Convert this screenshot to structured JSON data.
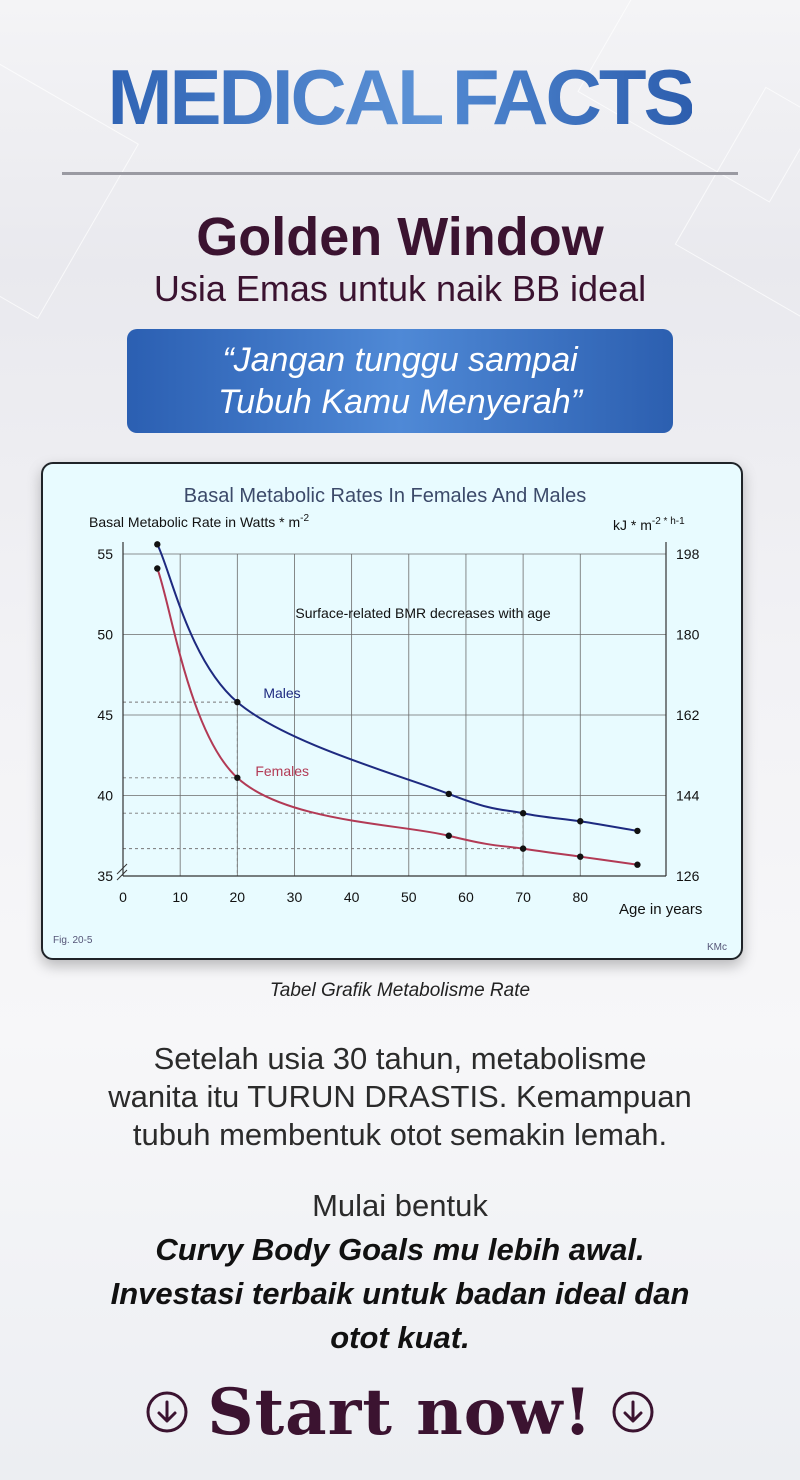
{
  "headline": {
    "word1": "MEDICAL",
    "word2": "FACTS"
  },
  "title": "Golden Window",
  "subtitle": "Usia Emas untuk naik BB ideal",
  "quote": {
    "line1": "“Jangan tunggu sampai",
    "line2": "Tubuh Kamu Menyerah”"
  },
  "chart_data": {
    "type": "line",
    "title": "Basal Metabolic Rates In Females And Males",
    "ylabel": "Basal Metabolic Rate in Watts * m",
    "ylabel_sup": "-2",
    "y2label": "kJ * m",
    "y2label_sup": "-2 * h-1",
    "xlabel": "Age in years",
    "annotation": "Surface-related BMR decreases with age",
    "fig_label": "Fig. 20-5",
    "credit": "KMc",
    "xlim": [
      0,
      95
    ],
    "ylim": [
      35,
      55
    ],
    "x_ticks": [
      "0",
      "10",
      "20",
      "30",
      "40",
      "50",
      "60",
      "70",
      "80"
    ],
    "y_ticks": [
      "55",
      "50",
      "45",
      "40",
      "35"
    ],
    "y2_ticks": [
      "198",
      "180",
      "162",
      "144",
      "126"
    ],
    "series": [
      {
        "name": "Males",
        "color": "#1e2a80",
        "points": [
          [
            6,
            55.6
          ],
          [
            20,
            45.8
          ],
          [
            57,
            40.1
          ],
          [
            70,
            38.9
          ],
          [
            80,
            38.4
          ],
          [
            90,
            37.8
          ]
        ]
      },
      {
        "name": "Females",
        "color": "#b23a55",
        "points": [
          [
            6,
            54.1
          ],
          [
            20,
            41.1
          ],
          [
            57,
            37.5
          ],
          [
            70,
            36.7
          ],
          [
            80,
            36.2
          ],
          [
            90,
            35.7
          ]
        ]
      }
    ]
  },
  "caption": "Tabel Grafik Metabolisme Rate",
  "body": [
    "Setelah usia 30 tahun, metabolisme",
    "wanita itu TURUN DRASTIS. Kemampuan",
    "tubuh membentuk otot semakin lemah."
  ],
  "cta": {
    "lead": "Mulai bentuk",
    "bold": [
      "Curvy Body Goals mu lebih awal.",
      "Investasi terbaik untuk badan ideal dan",
      "otot kuat."
    ],
    "button_label": "Start now!"
  }
}
